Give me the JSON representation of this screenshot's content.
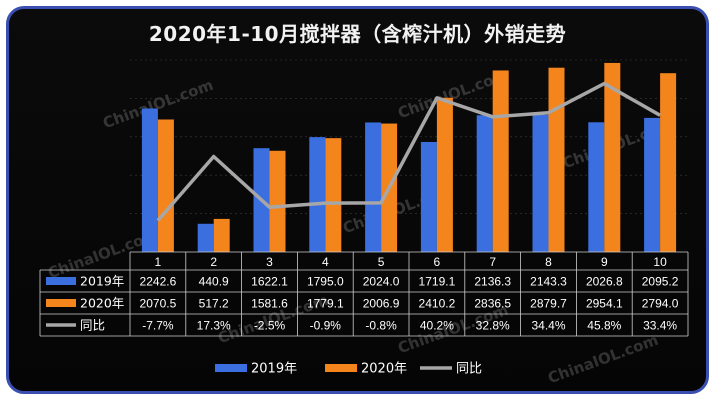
{
  "title": "2020年1-10月搅拌器（含榨汁机）外销走势",
  "watermark": "ChinaIOL.com",
  "colors": {
    "s2019": "#3b6fe0",
    "s2020": "#f4841c",
    "ratio": "#a7a7a7",
    "text": "#ffffff",
    "grid": "#3a3a3a"
  },
  "chart_data": {
    "type": "bar",
    "categories": [
      "1",
      "2",
      "3",
      "4",
      "5",
      "6",
      "7",
      "8",
      "9",
      "10"
    ],
    "series": [
      {
        "name": "2019年",
        "type": "bar",
        "values": [
          2242.6,
          440.9,
          1622.1,
          1795.0,
          2024.0,
          1719.1,
          2136.3,
          2143.3,
          2026.8,
          2095.2
        ]
      },
      {
        "name": "2020年",
        "type": "bar",
        "values": [
          2070.5,
          517.2,
          1581.6,
          1779.1,
          2006.9,
          2410.2,
          2836.5,
          2879.7,
          2954.1,
          2794.0
        ]
      },
      {
        "name": "同比",
        "type": "line",
        "values": [
          -7.7,
          17.3,
          -2.5,
          -0.9,
          -0.8,
          40.2,
          32.8,
          34.4,
          45.8,
          33.4
        ]
      }
    ],
    "table_rows": [
      [
        "2242.6",
        "440.9",
        "1622.1",
        "1795.0",
        "2024.0",
        "1719.1",
        "2136.3",
        "2143.3",
        "2026.8",
        "2095.2"
      ],
      [
        "2070.5",
        "517.2",
        "1581.6",
        "1779.1",
        "2006.9",
        "2410.2",
        "2836.5",
        "2879.7",
        "2954.1",
        "2794.0"
      ],
      [
        "-7.7%",
        "17.3%",
        "-2.5%",
        "-0.9%",
        "-0.8%",
        "40.2%",
        "32.8%",
        "34.4%",
        "45.8%",
        "33.4%"
      ]
    ],
    "legend": [
      "2019年",
      "2020年",
      "同比"
    ],
    "legend_position": "bottom",
    "grid": true
  }
}
